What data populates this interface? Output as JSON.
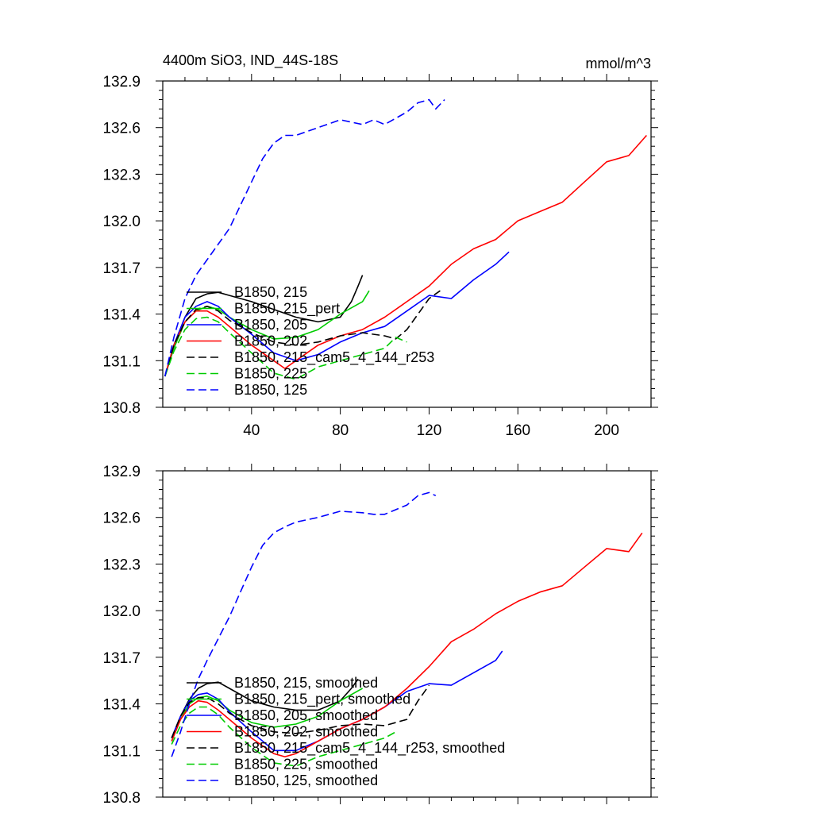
{
  "figure": {
    "title_left": "4400m SiO3, IND_44S-18S",
    "title_right": "mmol/m^3"
  },
  "chart_data": [
    {
      "type": "line",
      "panel": "top",
      "xlim": [
        0,
        220
      ],
      "ylim": [
        130.8,
        132.9
      ],
      "x_ticks": [
        40,
        80,
        120,
        160,
        200
      ],
      "x_tick_labels": [
        "40",
        "80",
        "120",
        "160",
        "200"
      ],
      "y_ticks": [
        130.8,
        131.1,
        131.4,
        131.7,
        132.0,
        132.3,
        132.6,
        132.9
      ],
      "y_tick_labels": [
        "130.8",
        "131.1",
        "131.4",
        "131.7",
        "132.0",
        "132.3",
        "132.6",
        "132.9"
      ],
      "grid": false,
      "legend_position": "lower-left",
      "series": [
        {
          "name": "B1850, 215",
          "color": "#000000",
          "dash": "solid",
          "x": [
            1,
            5,
            10,
            15,
            20,
            25,
            30,
            40,
            50,
            60,
            70,
            80,
            85,
            88,
            90
          ],
          "y": [
            131.0,
            131.2,
            131.38,
            131.5,
            131.53,
            131.54,
            131.52,
            131.48,
            131.43,
            131.38,
            131.35,
            131.38,
            131.48,
            131.58,
            131.65
          ]
        },
        {
          "name": "B1850, 215_pert",
          "color": "#00cc00",
          "dash": "solid",
          "x": [
            1,
            5,
            10,
            15,
            20,
            25,
            30,
            40,
            50,
            60,
            70,
            80,
            90,
            93
          ],
          "y": [
            131.0,
            131.18,
            131.35,
            131.42,
            131.45,
            131.43,
            131.38,
            131.3,
            131.24,
            131.25,
            131.3,
            131.4,
            131.48,
            131.55
          ]
        },
        {
          "name": "B1850, 205",
          "color": "#0000ff",
          "dash": "solid",
          "x": [
            1,
            5,
            10,
            15,
            20,
            25,
            30,
            40,
            50,
            60,
            70,
            80,
            90,
            100,
            110,
            120,
            130,
            140,
            150,
            156
          ],
          "y": [
            131.0,
            131.2,
            131.38,
            131.45,
            131.48,
            131.45,
            131.38,
            131.27,
            131.15,
            131.1,
            131.14,
            131.22,
            131.28,
            131.32,
            131.42,
            131.52,
            131.5,
            131.62,
            131.72,
            131.8
          ]
        },
        {
          "name": "B1850, 202",
          "color": "#ff0000",
          "dash": "solid",
          "x": [
            1,
            5,
            10,
            15,
            20,
            25,
            30,
            40,
            50,
            55,
            60,
            70,
            80,
            90,
            100,
            110,
            120,
            130,
            140,
            150,
            160,
            170,
            180,
            190,
            200,
            210,
            218
          ],
          "y": [
            131.0,
            131.2,
            131.35,
            131.42,
            131.42,
            131.38,
            131.32,
            131.2,
            131.1,
            131.05,
            131.1,
            131.2,
            131.26,
            131.3,
            131.38,
            131.48,
            131.58,
            131.72,
            131.82,
            131.88,
            132.0,
            132.06,
            132.12,
            132.25,
            132.38,
            132.42,
            132.55
          ]
        },
        {
          "name": "B1850, 215_cam5_4_144_r253",
          "color": "#000000",
          "dash": "dashed",
          "x": [
            1,
            5,
            10,
            15,
            20,
            25,
            30,
            40,
            50,
            60,
            70,
            80,
            90,
            100,
            105,
            110,
            115,
            120,
            125
          ],
          "y": [
            131.0,
            131.2,
            131.35,
            131.43,
            131.45,
            131.42,
            131.36,
            131.28,
            131.22,
            131.2,
            131.22,
            131.26,
            131.28,
            131.26,
            131.24,
            131.3,
            131.4,
            131.5,
            131.55
          ]
        },
        {
          "name": "B1850, 225",
          "color": "#00cc00",
          "dash": "dashed",
          "x": [
            1,
            5,
            10,
            15,
            20,
            25,
            30,
            40,
            50,
            60,
            70,
            80,
            90,
            100,
            105,
            110
          ],
          "y": [
            131.0,
            131.16,
            131.3,
            131.37,
            131.38,
            131.35,
            131.28,
            131.15,
            131.02,
            130.98,
            131.06,
            131.1,
            131.14,
            131.18,
            131.25,
            131.22
          ]
        },
        {
          "name": "B1850, 125",
          "color": "#0000ff",
          "dash": "dashed",
          "x": [
            1,
            5,
            10,
            15,
            20,
            25,
            30,
            35,
            40,
            45,
            50,
            55,
            60,
            70,
            80,
            90,
            95,
            100,
            110,
            115,
            120,
            123,
            127
          ],
          "y": [
            131.0,
            131.25,
            131.5,
            131.65,
            131.75,
            131.85,
            131.95,
            132.1,
            132.25,
            132.4,
            132.5,
            132.55,
            132.55,
            132.6,
            132.65,
            132.62,
            132.65,
            132.62,
            132.7,
            132.76,
            132.78,
            132.72,
            132.78
          ]
        }
      ]
    },
    {
      "type": "line",
      "panel": "bottom",
      "xlim": [
        0,
        220
      ],
      "ylim": [
        130.8,
        132.9
      ],
      "x_ticks": [
        40,
        80,
        120,
        160,
        200
      ],
      "y_ticks": [
        130.8,
        131.1,
        131.4,
        131.7,
        132.0,
        132.3,
        132.6,
        132.9
      ],
      "y_tick_labels": [
        "130.8",
        "131.1",
        "131.4",
        "131.7",
        "132.0",
        "132.3",
        "132.6",
        "132.9"
      ],
      "grid": false,
      "legend_position": "lower-left",
      "series": [
        {
          "name": "B1850, 215, smoothed",
          "color": "#000000",
          "dash": "solid",
          "x": [
            4,
            8,
            12,
            16,
            20,
            25,
            30,
            40,
            50,
            60,
            70,
            80,
            85,
            88
          ],
          "y": [
            131.18,
            131.32,
            131.43,
            131.5,
            131.53,
            131.54,
            131.5,
            131.42,
            131.38,
            131.36,
            131.36,
            131.42,
            131.5,
            131.56
          ]
        },
        {
          "name": "B1850, 215_pert, smoothed",
          "color": "#00cc00",
          "dash": "solid",
          "x": [
            4,
            8,
            12,
            16,
            20,
            25,
            30,
            40,
            50,
            60,
            70,
            80,
            90
          ],
          "y": [
            131.16,
            131.3,
            131.4,
            131.44,
            131.45,
            131.42,
            131.36,
            131.28,
            131.25,
            131.27,
            131.32,
            131.42,
            131.5
          ]
        },
        {
          "name": "B1850, 205, smoothed",
          "color": "#0000ff",
          "dash": "solid",
          "x": [
            4,
            8,
            12,
            16,
            20,
            25,
            30,
            40,
            50,
            60,
            70,
            80,
            90,
            100,
            110,
            120,
            130,
            140,
            150,
            153
          ],
          "y": [
            131.18,
            131.32,
            131.42,
            131.46,
            131.47,
            131.43,
            131.35,
            131.22,
            131.1,
            131.1,
            131.16,
            131.24,
            131.3,
            131.38,
            131.48,
            131.53,
            131.52,
            131.6,
            131.68,
            131.74
          ]
        },
        {
          "name": "B1850, 202, smoothed",
          "color": "#ff0000",
          "dash": "solid",
          "x": [
            4,
            8,
            12,
            16,
            20,
            25,
            30,
            40,
            50,
            55,
            60,
            70,
            80,
            90,
            100,
            110,
            120,
            130,
            140,
            150,
            160,
            170,
            180,
            190,
            200,
            210,
            216
          ],
          "y": [
            131.16,
            131.3,
            131.38,
            131.42,
            131.41,
            131.36,
            131.3,
            131.18,
            131.08,
            131.06,
            131.08,
            131.16,
            131.24,
            131.3,
            131.38,
            131.5,
            131.64,
            131.8,
            131.88,
            131.98,
            132.06,
            132.12,
            132.16,
            132.28,
            132.4,
            132.38,
            132.5
          ]
        },
        {
          "name": "B1850, 215_cam5_4_144_r253, smoothed",
          "color": "#000000",
          "dash": "dashed",
          "x": [
            4,
            8,
            12,
            16,
            20,
            25,
            30,
            40,
            50,
            60,
            70,
            80,
            90,
            100,
            110,
            115,
            120
          ],
          "y": [
            131.18,
            131.32,
            131.41,
            131.44,
            131.44,
            131.4,
            131.34,
            131.26,
            131.22,
            131.21,
            131.23,
            131.26,
            131.27,
            131.26,
            131.3,
            131.42,
            131.52
          ]
        },
        {
          "name": "B1850, 225, smoothed",
          "color": "#00cc00",
          "dash": "dashed",
          "x": [
            4,
            8,
            12,
            16,
            20,
            25,
            30,
            40,
            50,
            60,
            70,
            80,
            90,
            100,
            105
          ],
          "y": [
            131.14,
            131.26,
            131.34,
            131.38,
            131.38,
            131.33,
            131.25,
            131.12,
            131.02,
            131.0,
            131.06,
            131.1,
            131.14,
            131.18,
            131.22
          ]
        },
        {
          "name": "B1850, 125, smoothed",
          "color": "#0000ff",
          "dash": "dashed",
          "x": [
            4,
            8,
            12,
            16,
            20,
            25,
            30,
            35,
            40,
            45,
            50,
            55,
            60,
            70,
            80,
            90,
            95,
            100,
            110,
            115,
            120,
            123
          ],
          "y": [
            131.06,
            131.22,
            131.4,
            131.56,
            131.68,
            131.82,
            131.96,
            132.12,
            132.28,
            132.42,
            132.5,
            132.54,
            132.57,
            132.6,
            132.64,
            132.63,
            132.62,
            132.62,
            132.68,
            132.74,
            132.76,
            132.74
          ]
        }
      ]
    }
  ]
}
